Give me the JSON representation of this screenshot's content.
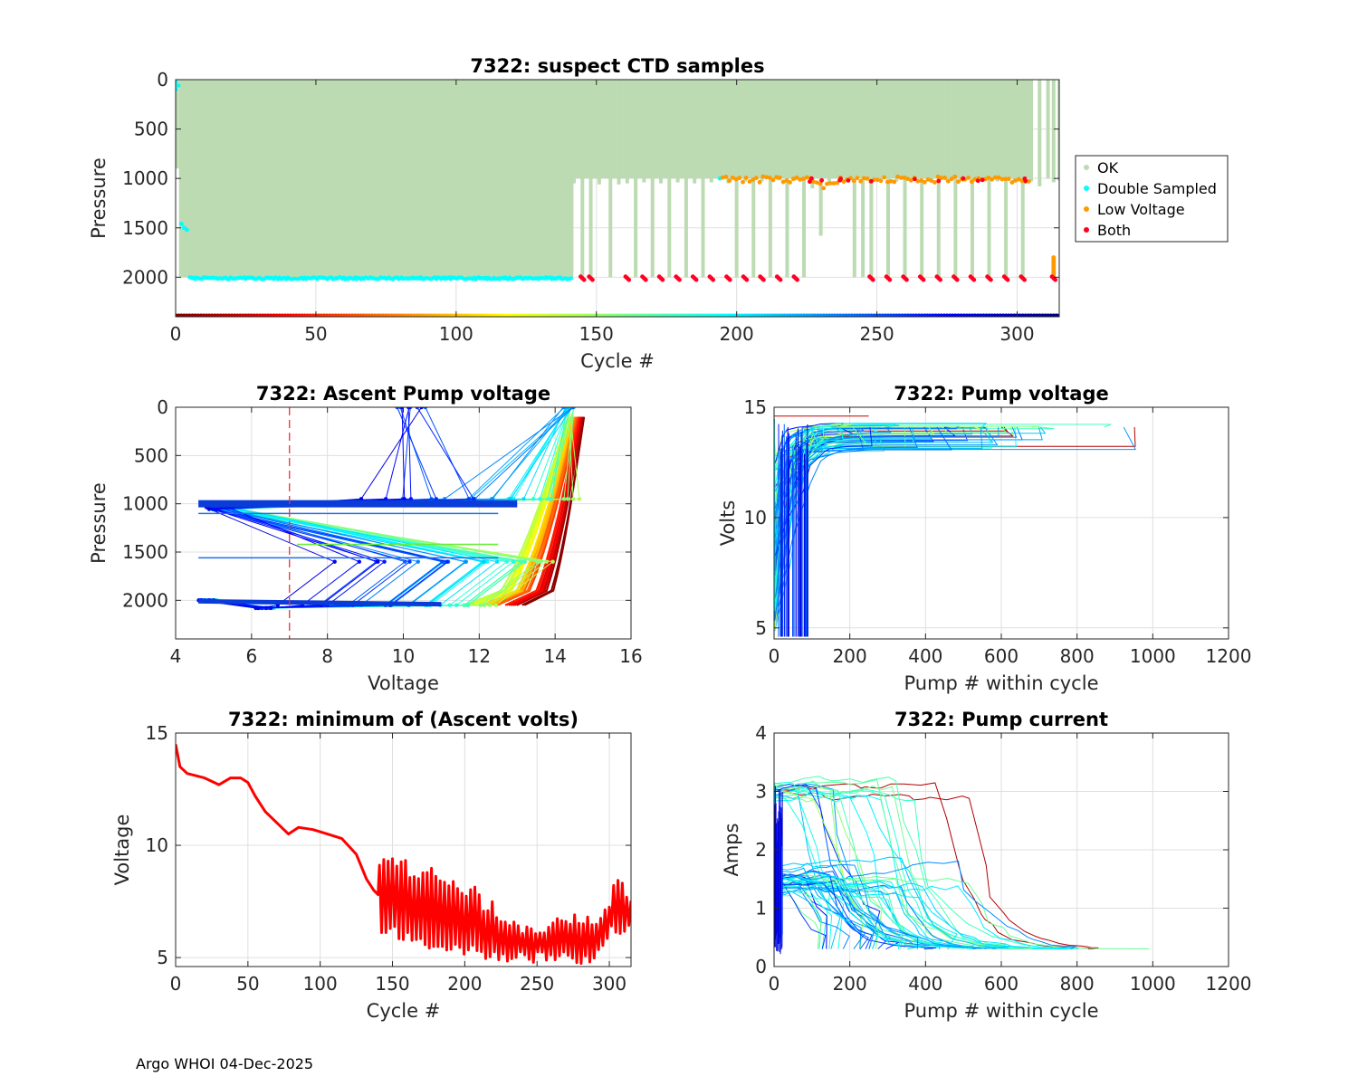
{
  "footer": "Argo WHOI 04-Dec-2025",
  "colors": {
    "ok": "#bcdbb2",
    "double": "#00ffff",
    "low": "#ff9900",
    "both": "#ff0022",
    "min": "#ff0000",
    "threshold": "#e8323c"
  },
  "chart_data": [
    {
      "id": "suspect",
      "type": "scatter",
      "title": "7322: suspect CTD samples",
      "xlabel": "Cycle #",
      "ylabel": "Pressure",
      "xlim": [
        0,
        315
      ],
      "ylim": [
        0,
        2400
      ],
      "y_reversed": true,
      "xticks": [
        0,
        50,
        100,
        150,
        200,
        250,
        300
      ],
      "yticks": [
        0,
        500,
        1000,
        1500,
        2000
      ],
      "grid": true,
      "legend": {
        "placement": "outside-right",
        "entries": [
          "OK",
          "Double Sampled",
          "Low Voltage",
          "Both"
        ]
      },
      "ok_profiles": {
        "full_depth_cycles": [
          2,
          141
        ],
        "full_depth_pressure": 2000,
        "later_cycles": [
          142,
          145,
          148,
          151,
          155,
          158,
          161,
          164,
          167,
          170,
          173,
          176,
          179,
          182,
          185,
          188,
          191,
          194,
          197,
          200,
          203,
          206,
          209,
          212,
          215,
          218,
          221,
          224,
          227,
          230,
          233,
          236,
          239,
          242,
          245,
          248,
          251,
          254,
          257,
          260,
          263,
          266,
          269,
          272,
          275,
          278,
          281,
          284,
          287,
          290,
          293,
          296,
          299,
          302,
          305,
          308,
          311,
          313,
          315
        ],
        "later_max_pressure": [
          1050,
          2000,
          2000,
          1060,
          2000,
          1060,
          1050,
          2000,
          1040,
          2000,
          1050,
          2000,
          1040,
          2000,
          1050,
          2000,
          1040,
          1000,
          1050,
          2000,
          1030,
          2000,
          1030,
          2000,
          1020,
          2000,
          1020,
          2000,
          1100,
          1580,
          1040,
          1000,
          1020,
          2000,
          2000,
          2000,
          1030,
          2000,
          1030,
          2000,
          1020,
          2000,
          1030,
          2000,
          1020,
          2000,
          1030,
          2000,
          1020,
          2000,
          1030,
          2000,
          1020,
          2000,
          1030,
          1080,
          1000,
          1040,
          1020
        ]
      },
      "double_sampled": {
        "deep_band_cycles": [
          5,
          141
        ],
        "deep_band_pressure": 2010,
        "shallow_points": [
          [
            0,
            20
          ],
          [
            0,
            100
          ],
          [
            1,
            60
          ],
          [
            2,
            1460
          ],
          [
            3,
            1500
          ],
          [
            4,
            1520
          ]
        ]
      },
      "low_voltage_band": {
        "cycles": [
          195,
          305
        ],
        "pressure_range": [
          960,
          1060
        ]
      },
      "both_points_pressure": 2010,
      "both_cycles": [
        145,
        148,
        161,
        167,
        173,
        179,
        185,
        191,
        197,
        203,
        209,
        215,
        221,
        248,
        254,
        260,
        266,
        272,
        278,
        284,
        290,
        296,
        302,
        313
      ]
    },
    {
      "id": "ascent",
      "type": "line",
      "title": "7322: Ascent Pump voltage",
      "xlabel": "Voltage",
      "ylabel": "Pressure",
      "xlim": [
        4,
        16
      ],
      "ylim": [
        0,
        2400
      ],
      "y_reversed": true,
      "xticks": [
        4,
        6,
        8,
        10,
        12,
        14,
        16
      ],
      "yticks": [
        0,
        500,
        1000,
        1500,
        2000
      ],
      "grid": true,
      "threshold_voltage": 7,
      "series_summary": [
        {
          "name": "early cycles (red)",
          "deep_voltage": 13.0,
          "surface_voltage": 14.8
        },
        {
          "name": "mid cycles (green)",
          "deep_voltage": 12.0,
          "surface_voltage": 14.4
        },
        {
          "name": "late cycles (blue)",
          "deep_voltage": 4.6,
          "surface_voltage": 14.2,
          "park_pressure": 1000
        }
      ]
    },
    {
      "id": "pumpv",
      "type": "line",
      "title": "7322: Pump voltage",
      "xlabel": "Pump # within cycle",
      "ylabel": "Volts",
      "xlim": [
        0,
        1200
      ],
      "ylim": [
        4.5,
        15
      ],
      "xticks": [
        0,
        200,
        400,
        600,
        800,
        1000,
        1200
      ],
      "yticks": [
        5,
        10,
        15
      ],
      "grid": true,
      "series_summary": {
        "start_volts": [
          5,
          14.5
        ],
        "plateau_volts": [
          13.0,
          14.3
        ],
        "max_pump_count": 1000
      }
    },
    {
      "id": "minv",
      "type": "line",
      "title": "7322: minimum of (Ascent volts)",
      "xlabel": "Cycle #",
      "ylabel": "Voltage",
      "xlim": [
        0,
        315
      ],
      "ylim": [
        4.6,
        15
      ],
      "xticks": [
        0,
        50,
        100,
        150,
        200,
        250,
        300
      ],
      "yticks": [
        5,
        10,
        15
      ],
      "grid": true,
      "series": [
        {
          "name": "minimum ascent volts",
          "x": [
            0,
            3,
            8,
            20,
            30,
            38,
            45,
            50,
            55,
            62,
            70,
            78,
            85,
            95,
            105,
            115,
            125,
            132,
            137,
            140
          ],
          "y": [
            14.5,
            13.5,
            13.2,
            13.0,
            12.7,
            13.0,
            13.0,
            12.8,
            12.2,
            11.5,
            11.0,
            10.5,
            10.8,
            10.7,
            10.5,
            10.3,
            9.6,
            8.5,
            8.0,
            7.8
          ],
          "oscillating_section": {
            "x_range": [
              141,
              315
            ],
            "upper_envelope": [
              [
                141,
                9.8
              ],
              [
                200,
                8.5
              ],
              [
                240,
                6.5
              ],
              [
                270,
                7.0
              ],
              [
                295,
                7.2
              ],
              [
                305,
                8.8
              ],
              [
                315,
                8.2
              ]
            ],
            "lower_envelope": [
              [
                141,
                6.0
              ],
              [
                170,
                5.5
              ],
              [
                200,
                5.0
              ],
              [
                240,
                4.7
              ],
              [
                290,
                4.7
              ],
              [
                300,
                6.0
              ],
              [
                315,
                6.0
              ]
            ]
          }
        }
      ]
    },
    {
      "id": "pumpc",
      "type": "line",
      "title": "7322: Pump current",
      "xlabel": "Pump # within cycle",
      "ylabel": "Amps",
      "xlim": [
        0,
        1200
      ],
      "ylim": [
        0,
        4
      ],
      "xticks": [
        0,
        200,
        400,
        600,
        800,
        1000,
        1200
      ],
      "yticks": [
        0,
        1,
        2,
        3,
        4
      ],
      "grid": true,
      "series_summary": {
        "high_start_amps": 3.1,
        "mid_start_amps": 1.6,
        "final_amps": 0.3,
        "max_pump_count": 1000
      }
    }
  ]
}
